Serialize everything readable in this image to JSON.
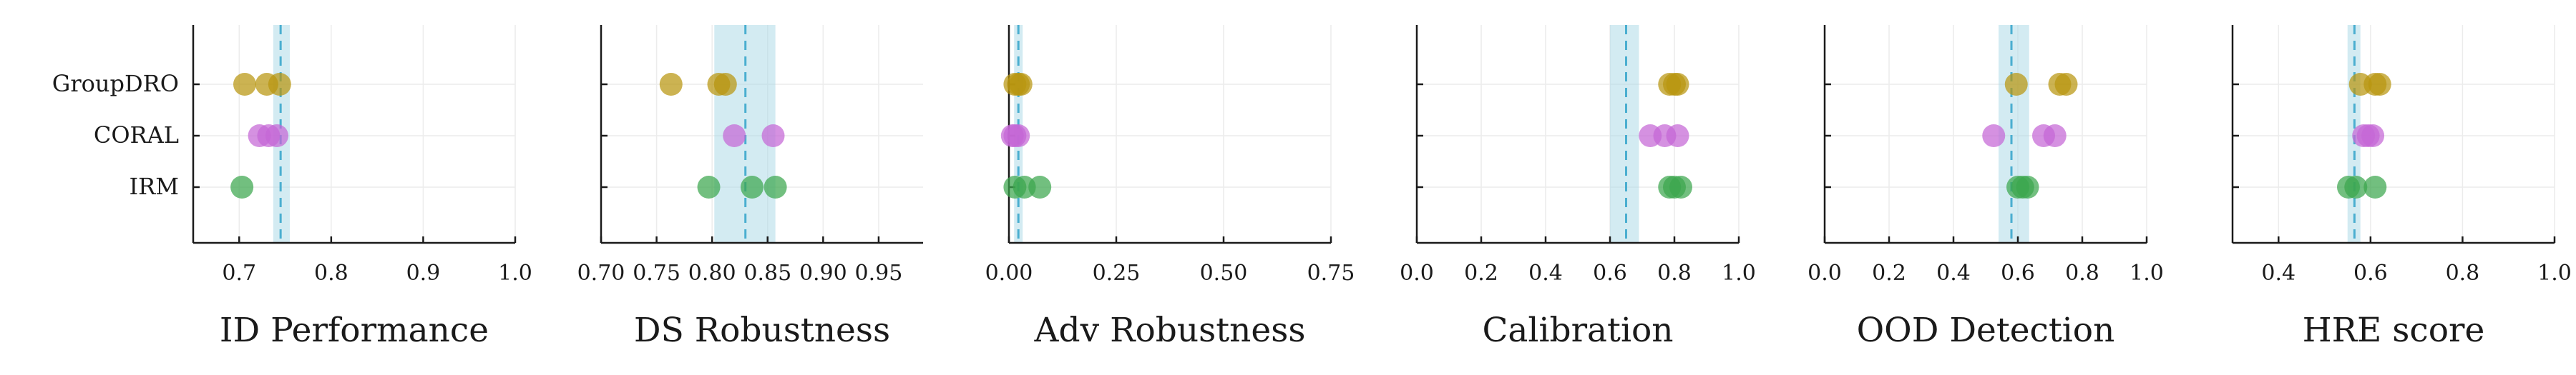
{
  "chart_data": {
    "type": "scatter",
    "categories": [
      "GroupDRO",
      "CORAL",
      "IRM"
    ],
    "category_colors": {
      "GroupDRO": "#B8960F",
      "CORAL": "#C566D6",
      "IRM": "#3CA64E"
    },
    "reference_line_color": "#4AAED0",
    "reference_band_color": "#A8D8E6",
    "grid": true,
    "panels": [
      {
        "xlabel": "ID Performance",
        "xlim": [
          0.65,
          1.0
        ],
        "xticks": [
          0.7,
          0.8,
          0.9,
          1.0
        ],
        "xtick_labels": [
          "0.7",
          "0.8",
          "0.9",
          "1.0"
        ],
        "reference": 0.745,
        "band": [
          0.737,
          0.755
        ],
        "points": {
          "GroupDRO": [
            0.706,
            0.73,
            0.744
          ],
          "CORAL": [
            0.722,
            0.732,
            0.741
          ],
          "IRM": [
            0.703
          ]
        }
      },
      {
        "xlabel": "DS Robustness",
        "xlim": [
          0.7,
          0.99
        ],
        "xticks": [
          0.7,
          0.75,
          0.8,
          0.85,
          0.9,
          0.95
        ],
        "xtick_labels": [
          "0.70",
          "0.75",
          "0.80",
          "0.85",
          "0.90",
          "0.95"
        ],
        "reference": 0.83,
        "band": [
          0.802,
          0.857
        ],
        "points": {
          "GroupDRO": [
            0.763,
            0.806,
            0.812
          ],
          "CORAL": [
            0.82,
            0.855
          ],
          "IRM": [
            0.797,
            0.836,
            0.857
          ]
        }
      },
      {
        "xlabel": "Adv Robustness",
        "xlim": [
          0.0,
          0.75
        ],
        "xticks": [
          0.0,
          0.25,
          0.5,
          0.75
        ],
        "xtick_labels": [
          "0.00",
          "0.25",
          "0.50",
          "0.75"
        ],
        "reference": 0.022,
        "band": [
          0.012,
          0.032
        ],
        "points": {
          "GroupDRO": [
            0.014,
            0.022,
            0.028
          ],
          "CORAL": [
            0.008,
            0.014,
            0.022
          ],
          "IRM": [
            0.014,
            0.036,
            0.072
          ]
        }
      },
      {
        "xlabel": "Calibration",
        "xlim": [
          0.0,
          1.0
        ],
        "xticks": [
          0.0,
          0.2,
          0.4,
          0.6,
          0.8,
          1.0
        ],
        "xtick_labels": [
          "0.0",
          "0.2",
          "0.4",
          "0.6",
          "0.8",
          "1.0"
        ],
        "reference": 0.65,
        "band": [
          0.6,
          0.69
        ],
        "points": {
          "GroupDRO": [
            0.785,
            0.8,
            0.81
          ],
          "CORAL": [
            0.725,
            0.77,
            0.81
          ],
          "IRM": [
            0.785,
            0.8,
            0.82
          ]
        }
      },
      {
        "xlabel": "OOD Detection",
        "xlim": [
          0.0,
          1.0
        ],
        "xticks": [
          0.0,
          0.2,
          0.4,
          0.6,
          0.8,
          1.0
        ],
        "xtick_labels": [
          "0.0",
          "0.2",
          "0.4",
          "0.6",
          "0.8",
          "1.0"
        ],
        "reference": 0.58,
        "band": [
          0.54,
          0.635
        ],
        "points": {
          "GroupDRO": [
            0.595,
            0.73,
            0.75
          ],
          "CORAL": [
            0.525,
            0.68,
            0.715
          ],
          "IRM": [
            0.6,
            0.615,
            0.63
          ]
        }
      },
      {
        "xlabel": "HRE score",
        "xlim": [
          0.3,
          1.0
        ],
        "xticks": [
          0.4,
          0.6,
          0.8,
          1.0
        ],
        "xtick_labels": [
          "0.4",
          "0.6",
          "0.8",
          "1.0"
        ],
        "reference": 0.565,
        "band": [
          0.55,
          0.578
        ],
        "points": {
          "GroupDRO": [
            0.578,
            0.61,
            0.62
          ],
          "CORAL": [
            0.585,
            0.595,
            0.605
          ],
          "IRM": [
            0.552,
            0.568,
            0.61
          ]
        }
      }
    ]
  }
}
